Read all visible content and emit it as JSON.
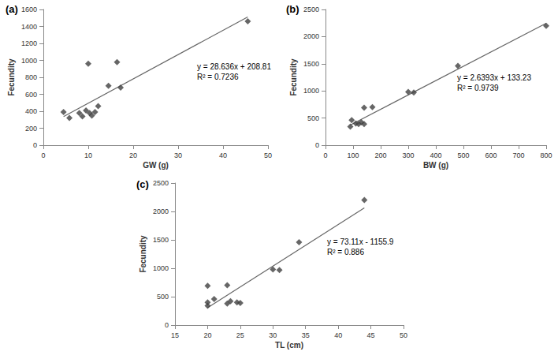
{
  "chart_data": [
    {
      "type": "scatter",
      "title": "(a)",
      "x_label": "GW (g)",
      "y_label": "Fecundity",
      "x": [
        4.5,
        5.8,
        8,
        8.7,
        9.5,
        10,
        10.3,
        10.8,
        11.5,
        12.2,
        14.5,
        16.4,
        17.2,
        45.5
      ],
      "values": [
        390,
        320,
        380,
        340,
        410,
        960,
        380,
        350,
        390,
        460,
        700,
        980,
        680,
        1460
      ],
      "color": "#404040",
      "marker": "diamond",
      "xlim": [
        0,
        50
      ],
      "xticks": [
        0,
        10,
        20,
        30,
        40,
        50
      ],
      "ylim": [
        0,
        1600
      ],
      "yticks": [
        0,
        200,
        400,
        600,
        800,
        1000,
        1200,
        1400,
        1600
      ],
      "grid": false,
      "trendline": {
        "x": [
          4.5,
          45.5
        ],
        "slope": 28.636,
        "intercept": 208.81
      },
      "annotations": [
        "y = 28.636x + 208.81",
        "R² = 0.7236"
      ]
    },
    {
      "type": "scatter",
      "title": "(b)",
      "x_label": "BW (g)",
      "y_label": "Fecundity",
      "x": [
        90,
        95,
        110,
        120,
        130,
        140,
        140,
        170,
        300,
        320,
        480,
        800
      ],
      "values": [
        340,
        460,
        400,
        390,
        420,
        390,
        690,
        700,
        980,
        970,
        1460,
        2200
      ],
      "color": "#404040",
      "marker": "diamond",
      "xlim": [
        0,
        800
      ],
      "xticks": [
        0,
        100,
        200,
        300,
        400,
        500,
        600,
        700,
        800
      ],
      "ylim": [
        0,
        2500
      ],
      "yticks": [
        0,
        500,
        1000,
        1500,
        2000,
        2500
      ],
      "grid": false,
      "trendline": {
        "x": [
          90,
          800
        ],
        "slope": 2.6393,
        "intercept": 133.23
      },
      "annotations": [
        "y = 2.6393x + 133.23",
        "R² = 0.9739"
      ]
    },
    {
      "type": "scatter",
      "title": "(c)",
      "x_label": "TL (cm)",
      "y_label": "Fecundity",
      "x": [
        20,
        20,
        20,
        21,
        23,
        23,
        23.5,
        24.5,
        25,
        30,
        31,
        34,
        44
      ],
      "values": [
        340,
        400,
        690,
        460,
        700,
        380,
        420,
        400,
        390,
        980,
        970,
        1460,
        2200
      ],
      "color": "#404040",
      "marker": "diamond",
      "xlim": [
        15,
        50
      ],
      "xticks": [
        15,
        20,
        25,
        30,
        35,
        40,
        45,
        50
      ],
      "ylim": [
        0,
        2500
      ],
      "yticks": [
        0,
        500,
        1000,
        1500,
        2000,
        2500
      ],
      "grid": false,
      "trendline": {
        "x": [
          20,
          44
        ],
        "slope": 73.11,
        "intercept": -1155.9
      },
      "annotations": [
        "y = 73.11x - 1155.9",
        "R² = 0.886"
      ]
    }
  ]
}
